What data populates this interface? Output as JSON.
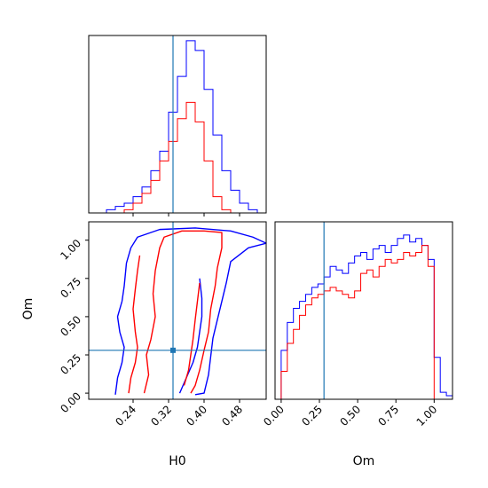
{
  "chart_data": [
    {
      "type": "histogram",
      "panel": "H0 marginal",
      "xlim": [
        0.14,
        0.54
      ],
      "truth": 0.33,
      "bin_edges": [
        0.14,
        0.16,
        0.18,
        0.2,
        0.22,
        0.24,
        0.26,
        0.28,
        0.3,
        0.32,
        0.34,
        0.36,
        0.38,
        0.4,
        0.42,
        0.44,
        0.46,
        0.48,
        0.5,
        0.52,
        0.54
      ],
      "series": [
        {
          "color": "#0000ff",
          "counts": [
            0,
            0,
            1,
            2,
            3,
            5,
            8,
            13,
            19,
            31,
            42,
            53,
            50,
            38,
            24,
            13,
            7,
            3,
            1,
            0
          ]
        },
        {
          "color": "#ff0000",
          "counts": [
            0,
            0,
            0,
            0,
            1,
            3,
            6,
            10,
            16,
            22,
            29,
            34,
            28,
            16,
            5,
            1,
            0,
            0,
            0,
            0
          ]
        }
      ]
    },
    {
      "type": "contour",
      "panel": "H0 vs Om",
      "xlabel": "H0",
      "ylabel": "Om",
      "xlim": [
        0.14,
        0.54
      ],
      "ylim": [
        -0.04,
        1.12
      ],
      "xticks": [
        "0.24",
        "0.32",
        "0.40",
        "0.48"
      ],
      "yticks": [
        "0.00",
        "0.25",
        "0.50",
        "0.75",
        "1.00"
      ],
      "truth": {
        "H0": 0.33,
        "Om": 0.28
      },
      "contours": [
        {
          "color": "#0000ff",
          "points": [
            [
              0.2,
              -0.01
            ],
            [
              0.205,
              0.1
            ],
            [
              0.215,
              0.2
            ],
            [
              0.22,
              0.3
            ],
            [
              0.21,
              0.4
            ],
            [
              0.205,
              0.5
            ],
            [
              0.215,
              0.6
            ],
            [
              0.22,
              0.7
            ],
            [
              0.225,
              0.85
            ],
            [
              0.235,
              0.95
            ],
            [
              0.25,
              1.02
            ],
            [
              0.3,
              1.07
            ],
            [
              0.38,
              1.08
            ],
            [
              0.46,
              1.06
            ],
            [
              0.51,
              1.02
            ],
            [
              0.54,
              0.98
            ],
            [
              0.5,
              0.95
            ],
            [
              0.46,
              0.86
            ],
            [
              0.45,
              0.72
            ],
            [
              0.44,
              0.6
            ],
            [
              0.43,
              0.48
            ],
            [
              0.42,
              0.36
            ],
            [
              0.415,
              0.24
            ],
            [
              0.41,
              0.12
            ],
            [
              0.4,
              0.0
            ],
            [
              0.38,
              -0.01
            ]
          ]
        },
        {
          "color": "#0000ff",
          "points": [
            [
              0.345,
              0.0
            ],
            [
              0.36,
              0.1
            ],
            [
              0.375,
              0.2
            ],
            [
              0.385,
              0.3
            ],
            [
              0.39,
              0.4
            ],
            [
              0.395,
              0.5
            ],
            [
              0.395,
              0.62
            ],
            [
              0.39,
              0.75
            ]
          ]
        },
        {
          "color": "#ff0000",
          "points": [
            [
              0.23,
              0.0
            ],
            [
              0.235,
              0.1
            ],
            [
              0.245,
              0.2
            ],
            [
              0.25,
              0.3
            ],
            [
              0.245,
              0.4
            ],
            [
              0.24,
              0.55
            ],
            [
              0.245,
              0.68
            ],
            [
              0.25,
              0.8
            ],
            [
              0.255,
              0.9
            ]
          ]
        },
        {
          "color": "#ff0000",
          "points": [
            [
              0.265,
              0.0
            ],
            [
              0.275,
              0.12
            ],
            [
              0.27,
              0.25
            ],
            [
              0.28,
              0.35
            ],
            [
              0.29,
              0.5
            ],
            [
              0.285,
              0.65
            ],
            [
              0.29,
              0.8
            ],
            [
              0.3,
              0.95
            ],
            [
              0.31,
              1.02
            ],
            [
              0.35,
              1.06
            ],
            [
              0.4,
              1.06
            ],
            [
              0.44,
              1.05
            ],
            [
              0.44,
              0.95
            ],
            [
              0.43,
              0.82
            ],
            [
              0.425,
              0.7
            ],
            [
              0.415,
              0.55
            ],
            [
              0.41,
              0.4
            ],
            [
              0.4,
              0.28
            ],
            [
              0.39,
              0.15
            ],
            [
              0.38,
              0.05
            ],
            [
              0.37,
              0.0
            ]
          ]
        },
        {
          "color": "#ff0000",
          "points": [
            [
              0.355,
              0.05
            ],
            [
              0.365,
              0.15
            ],
            [
              0.37,
              0.25
            ],
            [
              0.375,
              0.35
            ],
            [
              0.38,
              0.48
            ],
            [
              0.385,
              0.6
            ],
            [
              0.39,
              0.72
            ]
          ]
        }
      ]
    },
    {
      "type": "histogram",
      "panel": "Om marginal",
      "xlabel": "Om",
      "xlim": [
        -0.04,
        1.12
      ],
      "xticks": [
        "0.00",
        "0.25",
        "0.50",
        "0.75",
        "1.00"
      ],
      "truth": 0.28,
      "bin_edges": [
        -0.04,
        0.0,
        0.04,
        0.08,
        0.12,
        0.16,
        0.2,
        0.24,
        0.28,
        0.32,
        0.36,
        0.4,
        0.44,
        0.48,
        0.52,
        0.56,
        0.6,
        0.64,
        0.68,
        0.72,
        0.76,
        0.8,
        0.84,
        0.88,
        0.92,
        0.96,
        1.0,
        1.04,
        1.08,
        1.12
      ],
      "series": [
        {
          "color": "#0000ff",
          "counts": [
            0,
            14,
            22,
            26,
            28,
            30,
            32,
            33,
            35,
            38,
            37,
            36,
            39,
            41,
            42,
            40,
            43,
            44,
            42,
            44,
            46,
            47,
            45,
            46,
            44,
            40,
            12,
            2,
            1
          ]
        },
        {
          "color": "#ff0000",
          "counts": [
            0,
            8,
            16,
            20,
            24,
            27,
            29,
            30,
            31,
            32,
            31,
            30,
            29,
            31,
            36,
            37,
            35,
            38,
            40,
            39,
            40,
            42,
            41,
            42,
            44,
            38,
            0,
            0,
            0
          ]
        }
      ]
    }
  ]
}
